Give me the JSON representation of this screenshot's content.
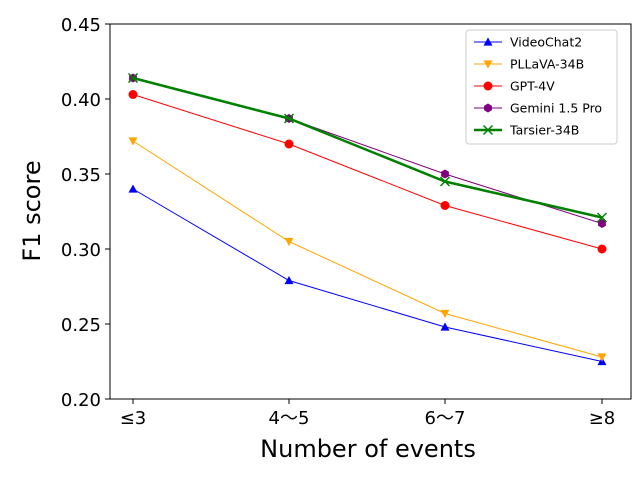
{
  "chart_data": {
    "type": "line",
    "title": "",
    "xlabel": "Number of events",
    "ylabel": "F1 score",
    "categories": [
      "≤3",
      "4～5",
      "6～7",
      "≥8"
    ],
    "ylim": [
      0.2,
      0.45
    ],
    "yticks": [
      "0.20",
      "0.25",
      "0.30",
      "0.35",
      "0.40",
      "0.45"
    ],
    "grid": false,
    "legend_position": "top-right",
    "series": [
      {
        "name": "VideoChat2",
        "color": "#0000ff",
        "marker": "triangle-up",
        "values": [
          0.34,
          0.279,
          0.248,
          0.225
        ]
      },
      {
        "name": "PLLaVA-34B",
        "color": "#ffa500",
        "marker": "triangle-down",
        "values": [
          0.372,
          0.305,
          0.257,
          0.228
        ]
      },
      {
        "name": "GPT-4V",
        "color": "#ff0000",
        "marker": "circle",
        "values": [
          0.403,
          0.37,
          0.329,
          0.3
        ]
      },
      {
        "name": "Gemini 1.5 Pro",
        "color": "#800080",
        "marker": "hexagon",
        "values": [
          0.414,
          0.387,
          0.35,
          0.317
        ]
      },
      {
        "name": "Tarsier-34B",
        "color": "#008000",
        "marker": "x",
        "values": [
          0.414,
          0.387,
          0.345,
          0.321
        ]
      }
    ]
  }
}
